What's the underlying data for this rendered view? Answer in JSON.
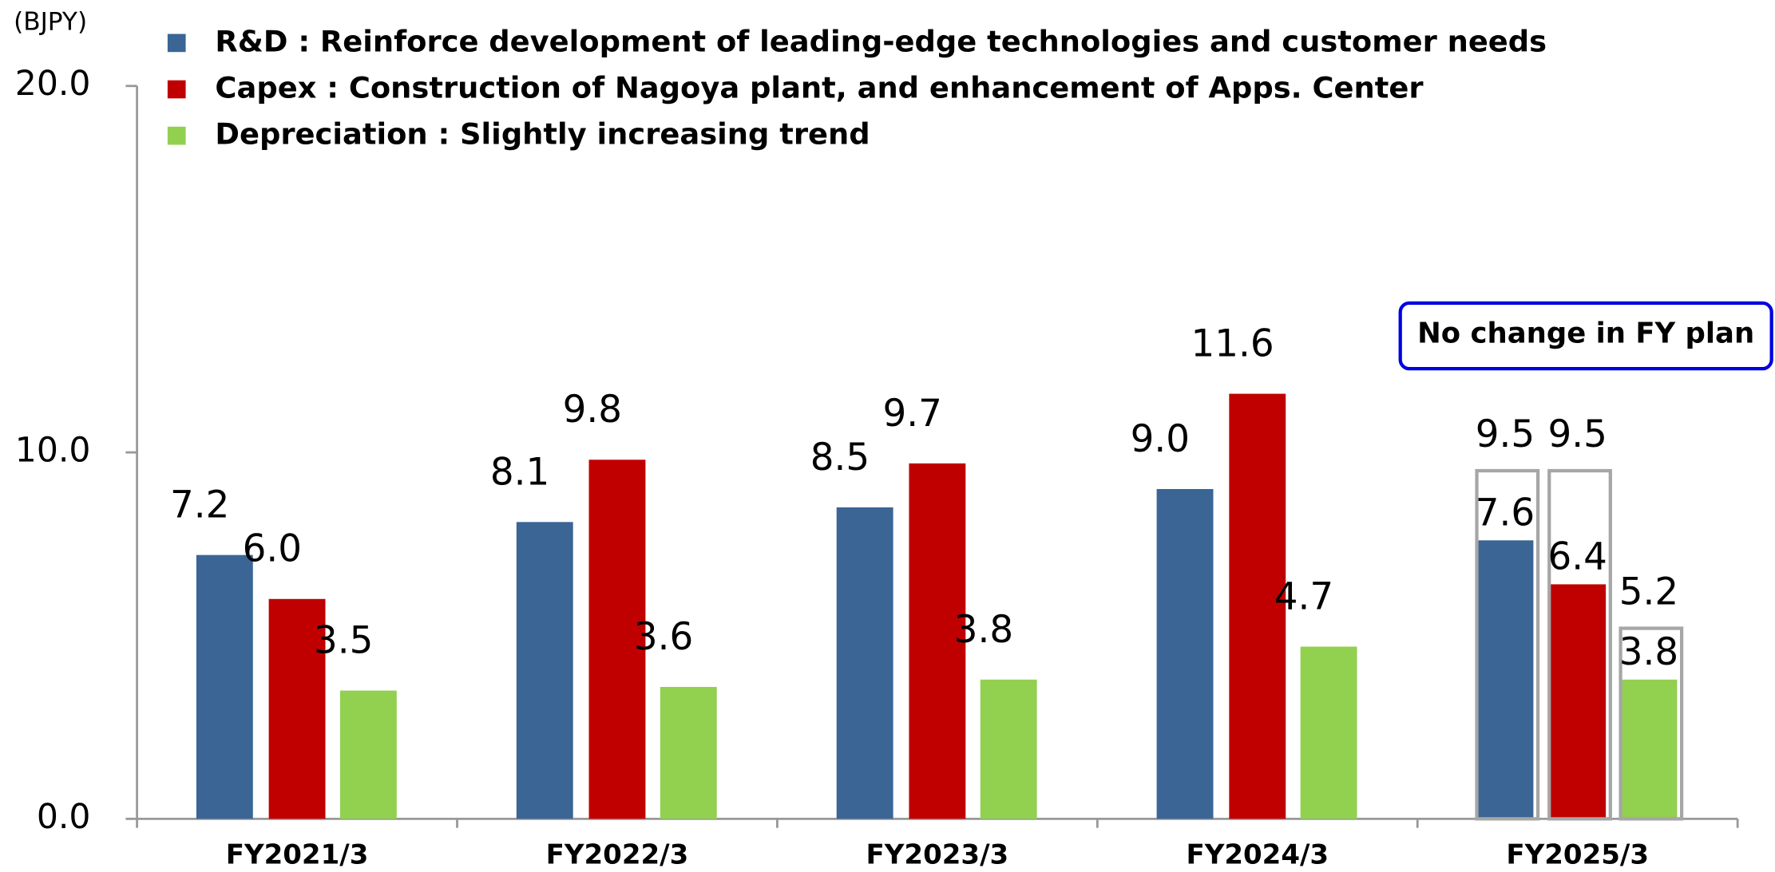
{
  "chart_data": {
    "type": "bar",
    "unit_label": "(BJPY)",
    "annotation": "No change in FY plan",
    "categories": [
      "FY2021/3",
      "FY2022/3",
      "FY2023/3",
      "FY2024/3",
      "FY2025/3"
    ],
    "series": [
      {
        "name": "R&D : Reinforce development of leading-edge technologies and customer needs",
        "color": "#3a6595",
        "values": [
          7.2,
          8.1,
          8.5,
          9.0,
          7.6
        ],
        "value_labels": [
          "7.2",
          "8.1",
          "8.5",
          "9.0",
          "7.6"
        ],
        "plan_values": [
          null,
          null,
          null,
          null,
          9.5
        ],
        "plan_labels": [
          null,
          null,
          null,
          null,
          "9.5"
        ]
      },
      {
        "name": "Capex :  Construction of Nagoya plant, and enhancement of Apps. Center",
        "color": "#c00000",
        "values": [
          6.0,
          9.8,
          9.7,
          11.6,
          6.4
        ],
        "value_labels": [
          "6.0",
          "9.8",
          "9.7",
          "11.6",
          "6.4"
        ],
        "plan_values": [
          null,
          null,
          null,
          null,
          9.5
        ],
        "plan_labels": [
          null,
          null,
          null,
          null,
          "9.5"
        ]
      },
      {
        "name": "Depreciation :  Slightly increasing trend",
        "color": "#92d050",
        "values": [
          3.5,
          3.6,
          3.8,
          4.7,
          3.8
        ],
        "value_labels": [
          "3.5",
          "3.6",
          "3.8",
          "4.7",
          "3.8"
        ],
        "plan_values": [
          null,
          null,
          null,
          null,
          5.2
        ],
        "plan_labels": [
          null,
          null,
          null,
          null,
          "5.2"
        ]
      }
    ],
    "ylim": [
      0,
      20
    ],
    "yticks": [
      {
        "value": 0,
        "label": "0.0"
      },
      {
        "value": 10,
        "label": "10.0"
      },
      {
        "value": 20,
        "label": "20.0"
      }
    ],
    "plan_color": "#a6a6a6"
  }
}
